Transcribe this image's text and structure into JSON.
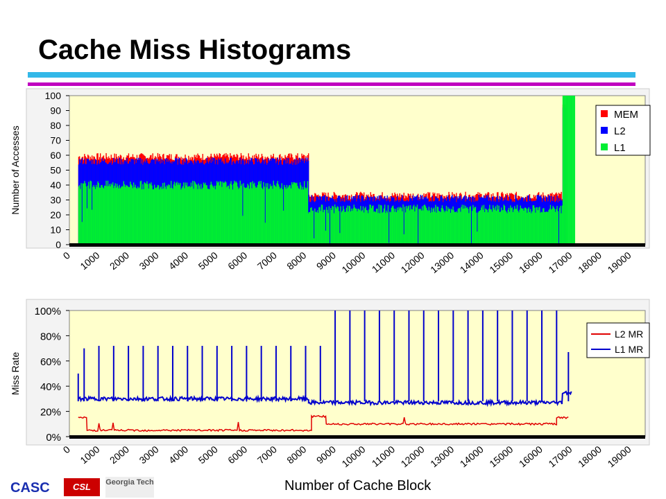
{
  "title": "Cache Miss Histograms",
  "footer": {
    "casc": "CASC",
    "csl": "CSL",
    "gt": "Georgia Tech",
    "xlabel": "Number of Cache Block"
  },
  "colors": {
    "mem": "#ff0000",
    "l2": "#0000ff",
    "l1": "#00ee33",
    "plot_bg": "#ffffcc",
    "l2mr": "#e00000",
    "l1mr": "#0000cc"
  },
  "chart_data": [
    {
      "type": "area",
      "ylabel": "Number of Accesses",
      "ylim": [
        0,
        100
      ],
      "yticks": [
        "0",
        "10",
        "20",
        "30",
        "40",
        "50",
        "60",
        "70",
        "80",
        "90",
        "100"
      ],
      "xticks": [
        "0",
        "1000",
        "2000",
        "3000",
        "4000",
        "5000",
        "6000",
        "7000",
        "8000",
        "9000",
        "10000",
        "11000",
        "12000",
        "13000",
        "14000",
        "15000",
        "16000",
        "17000",
        "18000",
        "19000"
      ],
      "xlim": [
        0,
        19500
      ],
      "legend": "right",
      "series": [
        {
          "name": "MEM",
          "values_by_range": [
            {
              "x": [
                300,
                8100
              ],
              "top": 59
            },
            {
              "x": [
                8100,
                16700
              ],
              "top": 33
            },
            {
              "x": [
                16700,
                16800
              ],
              "top": 94
            }
          ]
        },
        {
          "name": "L2",
          "values_by_range": [
            {
              "x": [
                300,
                8100
              ],
              "top": 56
            },
            {
              "x": [
                8100,
                16700
              ],
              "top": 31
            },
            {
              "x": [
                16700,
                16800
              ],
              "top": 92
            }
          ]
        },
        {
          "name": "L1",
          "values_by_range": [
            {
              "x": [
                300,
                8100
              ],
              "top": 40
            },
            {
              "x": [
                8100,
                16700
              ],
              "top": 24
            },
            {
              "x": [
                16700,
                17100
              ],
              "top": 100
            }
          ]
        }
      ]
    },
    {
      "type": "line",
      "ylabel": "Miss Rate",
      "ylim": [
        0,
        100
      ],
      "yticks": [
        "0%",
        "20%",
        "40%",
        "60%",
        "80%",
        "100%"
      ],
      "xticks": [
        "0",
        "1000",
        "2000",
        "3000",
        "4000",
        "5000",
        "6000",
        "7000",
        "8000",
        "9000",
        "10000",
        "11000",
        "12000",
        "13000",
        "14000",
        "15000",
        "16000",
        "17000",
        "18000",
        "19000"
      ],
      "xlim": [
        0,
        19500
      ],
      "legend": "right",
      "series": [
        {
          "name": "L2 MR",
          "baseline_ranges": [
            {
              "x": [
                300,
                600
              ],
              "y": 15
            },
            {
              "x": [
                600,
                8200
              ],
              "y": 5
            },
            {
              "x": [
                8200,
                8700
              ],
              "y": 16
            },
            {
              "x": [
                8700,
                16500
              ],
              "y": 10
            },
            {
              "x": [
                16500,
                16900
              ],
              "y": 15
            }
          ]
        },
        {
          "name": "L1 MR",
          "baseline_ranges": [
            {
              "x": [
                300,
                8100
              ],
              "y": 30
            },
            {
              "x": [
                8100,
                16700
              ],
              "y": 27
            },
            {
              "x": [
                16700,
                17000
              ],
              "y": 35
            }
          ],
          "spike_x": [
            300,
            500,
            1000,
            1500,
            2000,
            2500,
            3000,
            3500,
            4000,
            4500,
            5000,
            5500,
            6000,
            6500,
            7000,
            7500,
            8000,
            8500,
            9000,
            9500,
            10000,
            10500,
            11000,
            11500,
            12000,
            12500,
            13000,
            13500,
            14000,
            14500,
            15000,
            15500,
            16000,
            16500,
            16900
          ],
          "spike_y": [
            50,
            70,
            72,
            72,
            72,
            72,
            72,
            72,
            72,
            72,
            72,
            72,
            72,
            72,
            72,
            72,
            72,
            72,
            100,
            100,
            100,
            100,
            100,
            100,
            100,
            100,
            100,
            100,
            100,
            100,
            100,
            100,
            100,
            100,
            67
          ]
        }
      ]
    }
  ]
}
